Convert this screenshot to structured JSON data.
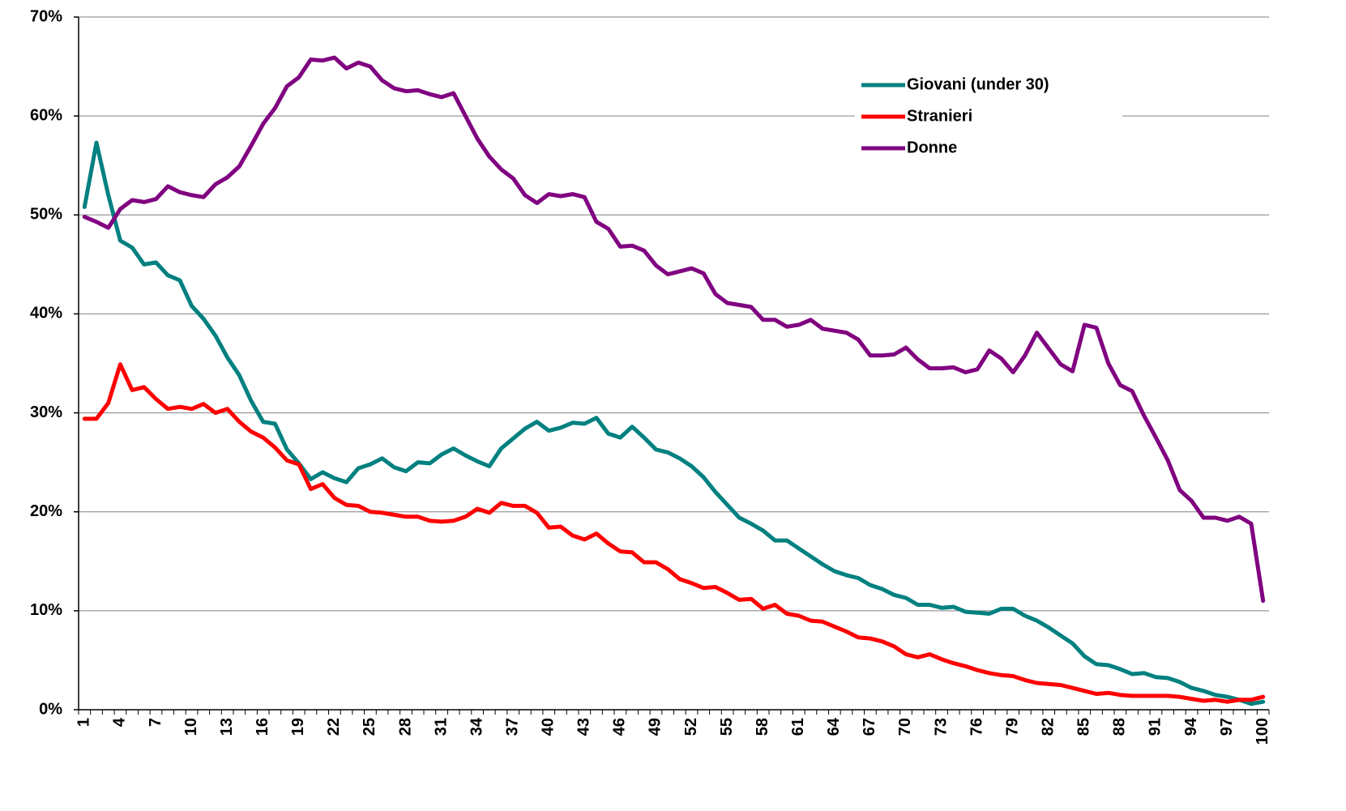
{
  "chart_data": {
    "type": "line",
    "categories": [
      "1",
      null,
      null,
      "4",
      null,
      null,
      "7",
      null,
      null,
      "10",
      null,
      null,
      "13",
      null,
      null,
      "16",
      null,
      null,
      "19",
      null,
      null,
      "22",
      null,
      null,
      "25",
      null,
      null,
      "28",
      null,
      null,
      "31",
      null,
      null,
      "34",
      null,
      null,
      "37",
      null,
      null,
      "40",
      null,
      null,
      "43",
      null,
      null,
      "46",
      null,
      null,
      "49",
      null,
      null,
      "52",
      null,
      null,
      "55",
      null,
      null,
      "58",
      null,
      null,
      "61",
      null,
      null,
      "64",
      null,
      null,
      "67",
      null,
      null,
      "70",
      null,
      null,
      "73",
      null,
      null,
      "76",
      null,
      null,
      "79",
      null,
      null,
      "82",
      null,
      null,
      "85",
      null,
      null,
      "88",
      null,
      null,
      "91",
      null,
      null,
      "94",
      null,
      null,
      "97",
      null,
      null,
      "100"
    ],
    "series": [
      {
        "name": "Giovani (under 30)",
        "color": "#008080",
        "values": [
          50.8,
          57.3,
          52,
          47.4,
          46.7,
          45.0,
          45.2,
          43.9,
          43.4,
          40.8,
          39.5,
          37.8,
          35.6,
          33.8,
          31.2,
          29.1,
          28.9,
          26.3,
          24.9,
          23.3,
          24.0,
          23.4,
          23.0,
          24.4,
          24.8,
          25.4,
          24.5,
          24.1,
          25.0,
          24.9,
          25.8,
          26.4,
          25.7,
          25.1,
          24.6,
          26.4,
          27.4,
          28.4,
          29.1,
          28.2,
          28.5,
          29.0,
          28.9,
          29.5,
          27.9,
          27.5,
          28.6,
          27.5,
          26.3,
          26.0,
          25.4,
          24.6,
          23.5,
          22.0,
          20.7,
          19.4,
          18.8,
          18.1,
          17.1,
          17.1,
          16.3,
          15.5,
          14.7,
          14.0,
          13.6,
          13.3,
          12.6,
          12.2,
          11.6,
          11.3,
          10.6,
          10.6,
          10.3,
          10.4,
          9.9,
          9.8,
          9.7,
          10.2,
          10.2,
          9.5,
          9.0,
          8.3,
          7.5,
          6.7,
          5.4,
          4.6,
          4.5,
          4.1,
          3.6,
          3.7,
          3.3,
          3.2,
          2.8,
          2.2,
          1.9,
          1.5,
          1.3,
          1.0,
          0.6,
          0.8
        ]
      },
      {
        "name": "Stranieri",
        "color": "#ff0000",
        "values": [
          29.4,
          29.4,
          31.0,
          34.9,
          32.3,
          32.6,
          31.4,
          30.4,
          30.6,
          30.4,
          30.9,
          30.0,
          30.4,
          29.1,
          28.1,
          27.5,
          26.5,
          25.2,
          24.8,
          22.3,
          22.8,
          21.4,
          20.7,
          20.6,
          20.0,
          19.9,
          19.7,
          19.5,
          19.5,
          19.1,
          19.0,
          19.1,
          19.5,
          20.3,
          19.9,
          20.9,
          20.6,
          20.6,
          19.9,
          18.4,
          18.5,
          17.6,
          17.2,
          17.8,
          16.8,
          16.0,
          15.9,
          14.9,
          14.9,
          14.2,
          13.2,
          12.8,
          12.3,
          12.4,
          11.8,
          11.1,
          11.2,
          10.2,
          10.6,
          9.7,
          9.5,
          9.0,
          8.9,
          8.4,
          7.9,
          7.3,
          7.2,
          6.9,
          6.4,
          5.6,
          5.3,
          5.6,
          5.1,
          4.7,
          4.4,
          4.0,
          3.7,
          3.5,
          3.4,
          3.0,
          2.7,
          2.6,
          2.5,
          2.2,
          1.9,
          1.6,
          1.7,
          1.5,
          1.4,
          1.4,
          1.4,
          1.4,
          1.3,
          1.1,
          0.9,
          1.0,
          0.8,
          1.0,
          1.0,
          1.3
        ]
      },
      {
        "name": "Donne",
        "color": "#800080",
        "values": [
          49.8,
          49.3,
          48.7,
          50.6,
          51.5,
          51.3,
          51.6,
          52.9,
          52.3,
          52.0,
          51.8,
          53.1,
          53.8,
          54.9,
          57.0,
          59.2,
          60.8,
          63.0,
          63.9,
          65.7,
          65.6,
          65.9,
          64.8,
          65.4,
          65.0,
          63.6,
          62.8,
          62.5,
          62.6,
          62.2,
          61.9,
          62.3,
          60.0,
          57.7,
          55.9,
          54.6,
          53.7,
          52.0,
          51.2,
          52.1,
          51.9,
          52.1,
          51.8,
          49.3,
          48.6,
          46.8,
          46.9,
          46.4,
          44.9,
          44.0,
          44.3,
          44.6,
          44.1,
          42.0,
          41.1,
          40.9,
          40.7,
          39.4,
          39.4,
          38.7,
          38.9,
          39.4,
          38.5,
          38.3,
          38.1,
          37.4,
          35.8,
          35.8,
          35.9,
          36.6,
          35.4,
          34.5,
          34.5,
          34.6,
          34.1,
          34.4,
          36.3,
          35.5,
          34.1,
          35.8,
          38.1,
          36.5,
          34.9,
          34.2,
          38.9,
          38.6,
          35.0,
          32.8,
          32.2,
          29.7,
          27.5,
          25.2,
          22.2,
          21.1,
          19.4,
          19.4,
          19.1,
          19.5,
          18.8,
          11.0
        ]
      }
    ],
    "ylim": [
      0,
      70
    ],
    "yticks": [
      {
        "value": 0,
        "label": "0%"
      },
      {
        "value": 10,
        "label": "10%"
      },
      {
        "value": 20,
        "label": "20%"
      },
      {
        "value": 30,
        "label": "30%"
      },
      {
        "value": 40,
        "label": "40%"
      },
      {
        "value": 50,
        "label": "50%"
      },
      {
        "value": 60,
        "label": "60%"
      },
      {
        "value": 70,
        "label": "70%"
      }
    ],
    "grid": true,
    "legend": "upper right"
  }
}
